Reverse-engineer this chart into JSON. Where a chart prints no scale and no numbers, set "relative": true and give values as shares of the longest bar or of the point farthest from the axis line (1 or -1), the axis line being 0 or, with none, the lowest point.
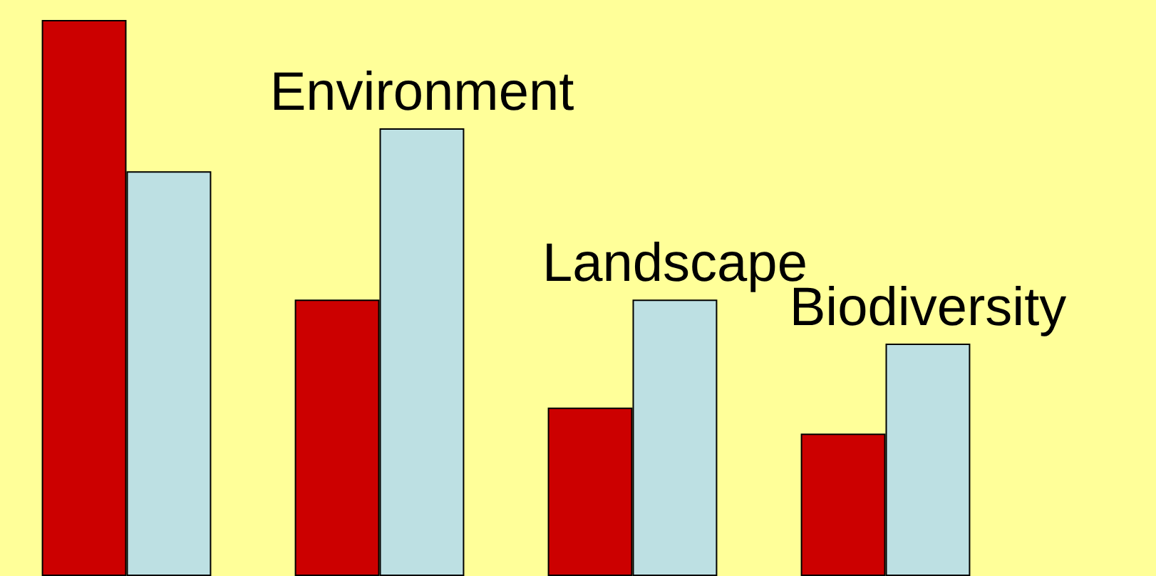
{
  "chart_data": {
    "type": "bar",
    "relative": true,
    "categories": [
      null,
      "Environment",
      "Landscape",
      "Biodiversity"
    ],
    "series": [
      {
        "color": "#cc0000",
        "values": [
          1,
          0.497,
          0.303,
          0.256
        ]
      },
      {
        "color": "#bde0e3",
        "values": [
          0.728,
          0.805,
          0.497,
          0.418
        ]
      }
    ]
  }
}
